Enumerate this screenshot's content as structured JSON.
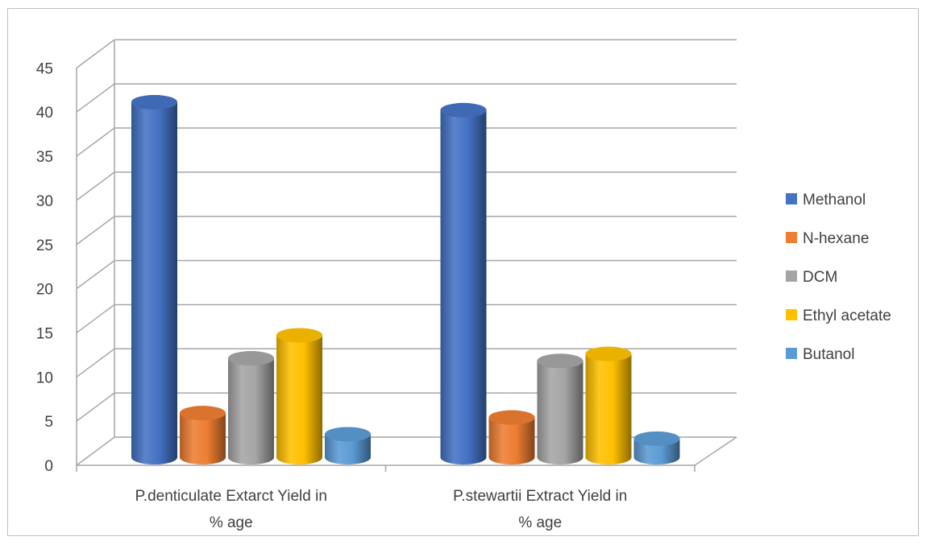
{
  "chart_data": {
    "type": "bar",
    "style": "3d-cylinder-clustered",
    "categories": [
      [
        "P.denticulate Extarct Yield in",
        "% age"
      ],
      [
        "P.stewartii  Extract Yield in",
        "% age"
      ]
    ],
    "series": [
      {
        "name": "Methanol",
        "color": "#4472c4",
        "values": [
          40.2,
          39.3
        ]
      },
      {
        "name": "N-hexane",
        "color": "#ed7d31",
        "values": [
          5.0,
          4.5
        ]
      },
      {
        "name": "DCM",
        "color": "#a5a5a5",
        "values": [
          11.2,
          10.9
        ]
      },
      {
        "name": "Ethyl acetate",
        "color": "#ffc000",
        "values": [
          13.8,
          11.7
        ]
      },
      {
        "name": "Butanol",
        "color": "#5b9bd5",
        "values": [
          2.6,
          2.1
        ]
      }
    ],
    "ylim": [
      0,
      45
    ],
    "yticks": [
      0,
      5,
      10,
      15,
      20,
      25,
      30,
      35,
      40,
      45
    ],
    "grid": true,
    "legend": "right"
  }
}
